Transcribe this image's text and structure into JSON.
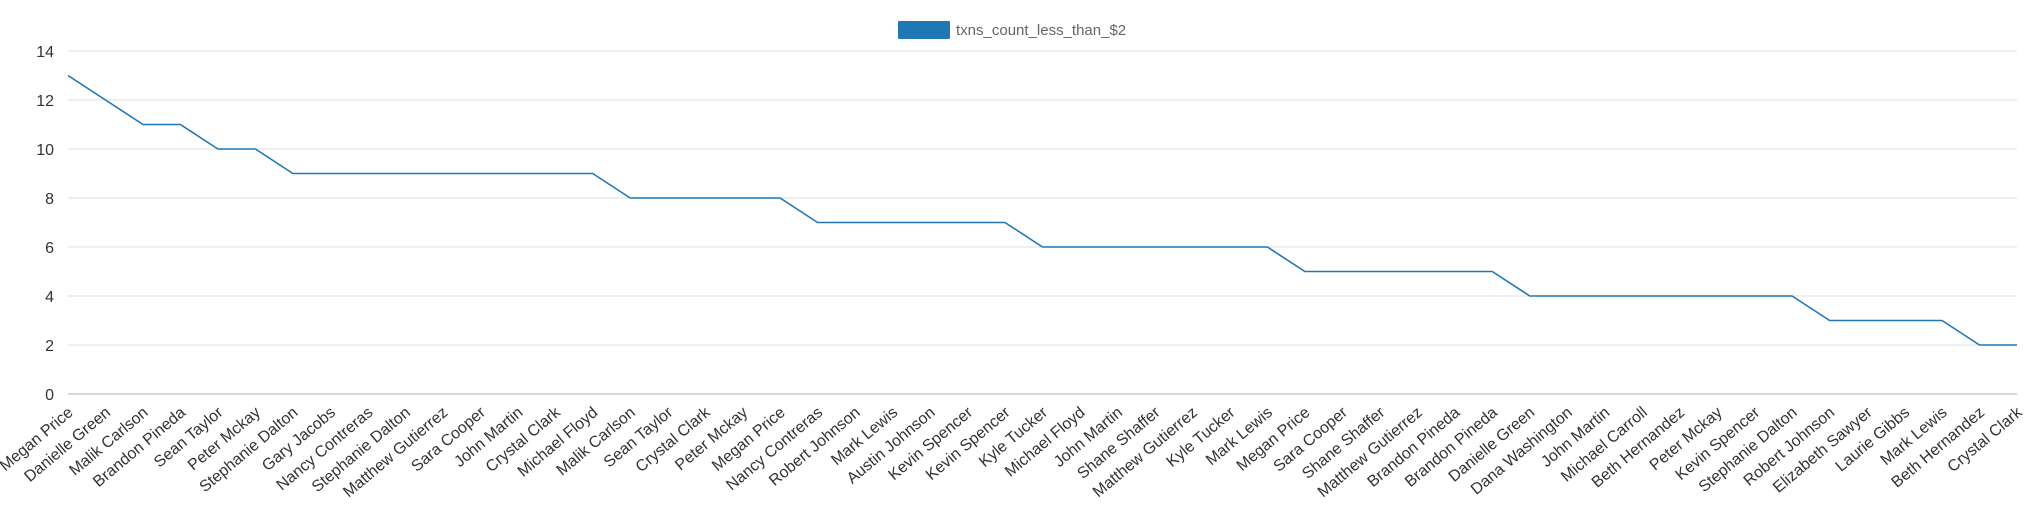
{
  "chart_data": {
    "type": "line",
    "legend": {
      "position": "top-center"
    },
    "series": [
      {
        "name": "txns_count_less_than_$2",
        "color": "#1f77b4",
        "values": [
          13,
          12,
          11,
          11,
          10,
          10,
          9,
          9,
          9,
          9,
          9,
          9,
          9,
          9,
          9,
          8,
          8,
          8,
          8,
          8,
          7,
          7,
          7,
          7,
          7,
          7,
          6,
          6,
          6,
          6,
          6,
          6,
          6,
          5,
          5,
          5,
          5,
          5,
          5,
          4,
          4,
          4,
          4,
          4,
          4,
          4,
          4,
          3,
          3,
          3,
          3,
          2,
          2
        ]
      }
    ],
    "categories": [
      "Megan Price",
      "Danielle Green",
      "Malik Carlson",
      "Brandon Pineda",
      "Sean Taylor",
      "Peter Mckay",
      "Stephanie Dalton",
      "Gary Jacobs",
      "Nancy Contreras",
      "Stephanie Dalton",
      "Matthew Gutierrez",
      "Sara Cooper",
      "John Martin",
      "Crystal Clark",
      "Michael Floyd",
      "Malik Carlson",
      "Sean Taylor",
      "Crystal Clark",
      "Peter Mckay",
      "Megan Price",
      "Nancy Contreras",
      "Robert Johnson",
      "Mark Lewis",
      "Austin Johnson",
      "Kevin Spencer",
      "Kevin Spencer",
      "Kyle Tucker",
      "Michael Floyd",
      "John Martin",
      "Shane Shaffer",
      "Matthew Gutierrez",
      "Kyle Tucker",
      "Mark Lewis",
      "Megan Price",
      "Sara Cooper",
      "Shane Shaffer",
      "Matthew Gutierrez",
      "Brandon Pineda",
      "Brandon Pineda",
      "Danielle Green",
      "Dana Washington",
      "John Martin",
      "Michael Carroll",
      "Beth Hernandez",
      "Peter Mckay",
      "Kevin Spencer",
      "Stephanie Dalton",
      "Robert Johnson",
      "Elizabeth Sawyer",
      "Laurie Gibbs",
      "Mark Lewis",
      "Beth Hernandez",
      "Crystal Clark"
    ],
    "ylim": [
      0,
      14
    ],
    "yticks": [
      0,
      2,
      4,
      6,
      8,
      10,
      12,
      14
    ],
    "grid": true
  }
}
